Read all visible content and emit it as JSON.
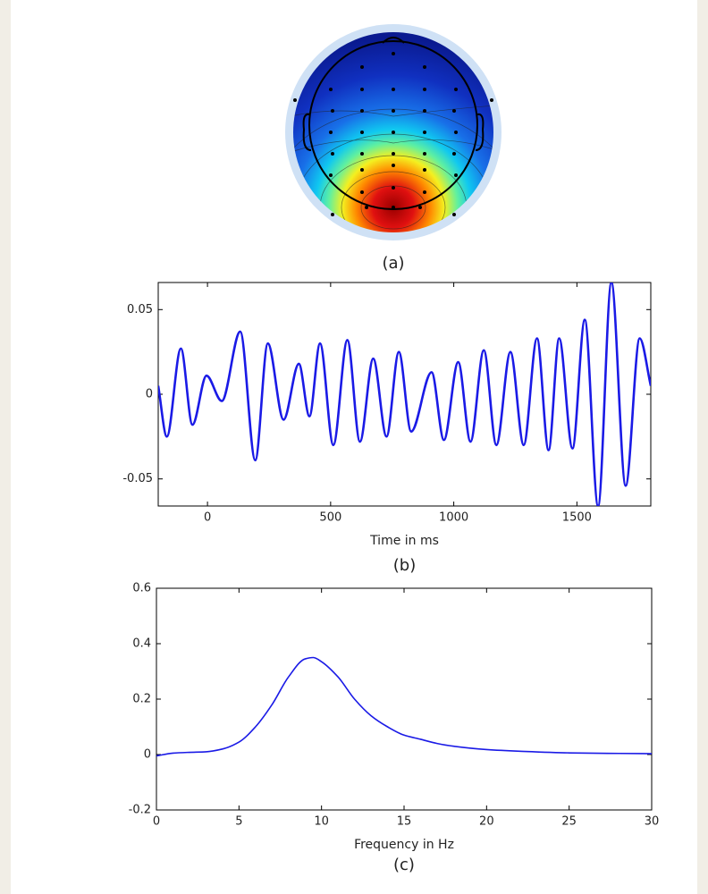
{
  "chart_data": [
    {
      "type": "topomap",
      "caption": "(a)"
    },
    {
      "type": "line",
      "caption": "(b)",
      "xlabel": "Time in ms",
      "color": "#1a1ae6",
      "x": [
        -200,
        -165,
        -108,
        -61,
        -4,
        58,
        133,
        194,
        245,
        309,
        371,
        414,
        457,
        511,
        568,
        619,
        673,
        727,
        777,
        827,
        910,
        960,
        1018,
        1068,
        1122,
        1173,
        1230,
        1284,
        1338,
        1385,
        1428,
        1482,
        1532,
        1586,
        1640,
        1698,
        1755,
        1800
      ],
      "values": [
        0.005,
        -0.025,
        0.027,
        -0.018,
        0.011,
        -0.004,
        0.037,
        -0.039,
        0.03,
        -0.015,
        0.018,
        -0.013,
        0.03,
        -0.03,
        0.032,
        -0.028,
        0.021,
        -0.025,
        0.025,
        -0.022,
        0.013,
        -0.027,
        0.019,
        -0.028,
        0.026,
        -0.03,
        0.025,
        -0.03,
        0.033,
        -0.033,
        0.033,
        -0.032,
        0.044,
        -0.066,
        0.066,
        -0.054,
        0.033,
        0.005
      ],
      "xlim": [
        -200,
        1800
      ],
      "ylim": [
        -0.066,
        0.066
      ],
      "xticks": [
        0,
        500,
        1000,
        1500
      ],
      "yticks": [
        -0.05,
        0,
        0.05
      ]
    },
    {
      "type": "line",
      "caption": "(c)",
      "xlabel": "Frequency in Hz",
      "color": "#1a1ae6",
      "x": [
        0,
        1,
        2,
        3,
        4,
        5,
        6,
        7,
        8,
        9,
        9.5,
        10,
        11,
        12,
        13,
        14,
        15,
        16,
        17,
        18,
        20,
        22,
        25,
        28,
        30
      ],
      "values": [
        -0.005,
        0.005,
        0.008,
        0.01,
        0.02,
        0.045,
        0.1,
        0.18,
        0.28,
        0.345,
        0.35,
        0.335,
        0.28,
        0.2,
        0.14,
        0.1,
        0.07,
        0.055,
        0.04,
        0.03,
        0.018,
        0.012,
        0.006,
        0.004,
        0.003
      ],
      "xlim": [
        0,
        30
      ],
      "ylim": [
        -0.2,
        0.6
      ],
      "xticks": [
        0,
        5,
        10,
        15,
        20,
        25,
        30
      ],
      "yticks": [
        -0.2,
        0,
        0.2,
        0.4,
        0.6
      ]
    }
  ]
}
